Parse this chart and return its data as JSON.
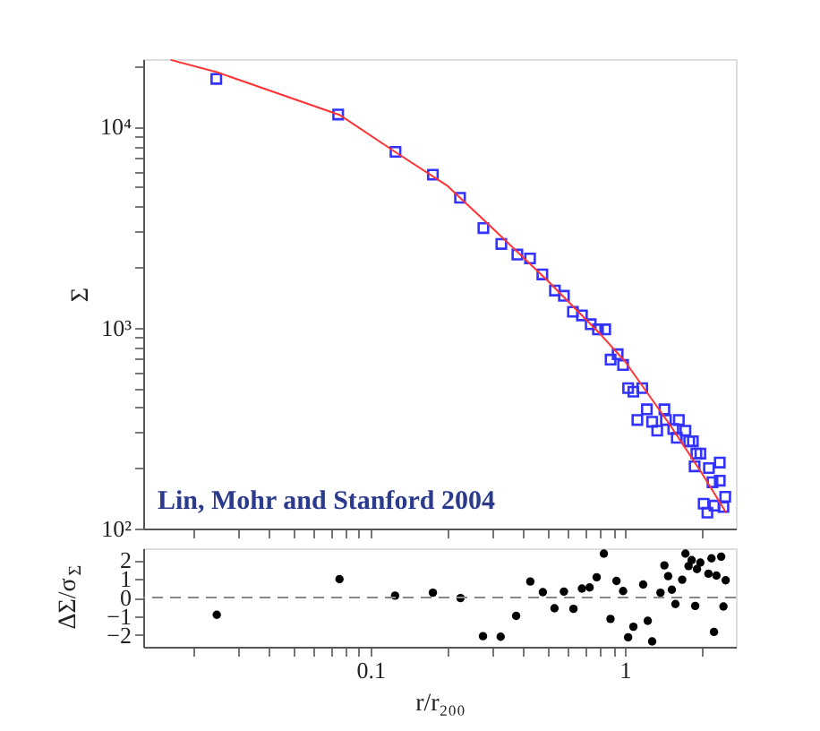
{
  "chart_data": [
    {
      "type": "scatter",
      "ylabel": "Σ",
      "log": "xy",
      "grid": false,
      "legend": false,
      "tick_labels": "y",
      "annotations": [
        "Lin, Mohr and Stanford 2004"
      ],
      "xlim": [
        0.0128,
        2.73
      ],
      "ylim": [
        100,
        21700
      ],
      "xticks": [
        {
          "value": 0.02,
          "label": null
        },
        {
          "value": 0.03,
          "label": null
        },
        {
          "value": 0.04,
          "label": null
        },
        {
          "value": 0.05,
          "label": null
        },
        {
          "value": 0.06,
          "label": null
        },
        {
          "value": 0.07,
          "label": null
        },
        {
          "value": 0.08,
          "label": null
        },
        {
          "value": 0.09,
          "label": null
        },
        {
          "value": 0.1,
          "label": null
        },
        {
          "value": 0.2,
          "label": null
        },
        {
          "value": 0.3,
          "label": null
        },
        {
          "value": 0.4,
          "label": null
        },
        {
          "value": 0.5,
          "label": null
        },
        {
          "value": 0.6,
          "label": null
        },
        {
          "value": 0.7,
          "label": null
        },
        {
          "value": 0.8,
          "label": null
        },
        {
          "value": 0.9,
          "label": null
        },
        {
          "value": 1,
          "label": null
        },
        {
          "value": 2,
          "label": null
        }
      ],
      "yticks": [
        {
          "value": 100,
          "label": "10²"
        },
        {
          "value": 200,
          "label": null
        },
        {
          "value": 300,
          "label": null
        },
        {
          "value": 400,
          "label": null
        },
        {
          "value": 500,
          "label": null
        },
        {
          "value": 600,
          "label": null
        },
        {
          "value": 700,
          "label": null
        },
        {
          "value": 800,
          "label": null
        },
        {
          "value": 900,
          "label": null
        },
        {
          "value": 1000,
          "label": "10³"
        },
        {
          "value": 2000,
          "label": null
        },
        {
          "value": 3000,
          "label": null
        },
        {
          "value": 4000,
          "label": null
        },
        {
          "value": 5000,
          "label": null
        },
        {
          "value": 6000,
          "label": null
        },
        {
          "value": 7000,
          "label": null
        },
        {
          "value": 8000,
          "label": null
        },
        {
          "value": 9000,
          "label": null
        },
        {
          "value": 10000,
          "label": "10⁴"
        },
        {
          "value": 20000,
          "label": null
        }
      ],
      "series": [
        {
          "type": "scatter",
          "marker": "square",
          "color": "#3333ff",
          "x": [
            0.0248,
            0.0747,
            0.1255,
            0.176,
            0.225,
            0.278,
            0.327,
            0.378,
            0.424,
            0.474,
            0.531,
            0.576,
            0.625,
            0.678,
            0.734,
            0.784,
            0.837,
            0.879,
            0.937,
            0.984,
            1.03,
            1.08,
            1.17,
            1.22,
            1.12,
            1.28,
            1.34,
            1.43,
            1.45,
            1.55,
            1.63,
            1.6,
            1.73,
            1.79,
            1.85,
            1.91,
            1.98,
            1.88,
            2.14,
            2.36,
            2.21,
            2.36,
            2.48,
            2.04,
            2.25,
            2.44,
            2.11
          ],
          "values": [
            17300,
            11500,
            7500,
            5770,
            4430,
            3130,
            2610,
            2310,
            2210,
            1840,
            1530,
            1440,
            1200,
            1150,
            1040,
            980,
            980,
            693,
            737,
            652,
            500,
            480,
            500,
            392,
            347,
            340,
            307,
            392,
            347,
            313,
            347,
            283,
            307,
            272,
            272,
            236,
            236,
            204,
            200,
            213,
            170,
            173,
            144,
            133,
            130,
            128,
            120
          ]
        },
        {
          "type": "line",
          "marker": "none",
          "line_style": "solid",
          "color": "#ff3333",
          "x": [
            0.0164,
            0.0249,
            0.0756,
            0.125,
            0.2,
            0.3,
            0.5,
            0.8,
            1.0,
            1.5,
            2.0,
            2.5
          ],
          "values": [
            21500,
            18700,
            11460,
            7500,
            5100,
            3150,
            1700,
            930,
            680,
            330,
            190,
            120
          ]
        }
      ]
    },
    {
      "type": "scatter",
      "xlabel": "r/r₂₀₀",
      "ylabel": "ΔΣ/σ$_{Σ}$",
      "log": "x",
      "grid": false,
      "legend": false,
      "xlim": [
        0.0128,
        2.73
      ],
      "ylim": [
        -2.65,
        2.65
      ],
      "xticks": [
        {
          "value": 0.02,
          "label": null
        },
        {
          "value": 0.03,
          "label": null
        },
        {
          "value": 0.04,
          "label": null
        },
        {
          "value": 0.05,
          "label": null
        },
        {
          "value": 0.06,
          "label": null
        },
        {
          "value": 0.07,
          "label": null
        },
        {
          "value": 0.08,
          "label": null
        },
        {
          "value": 0.09,
          "label": null
        },
        {
          "value": 0.1,
          "label": "0.1"
        },
        {
          "value": 0.2,
          "label": null
        },
        {
          "value": 0.3,
          "label": null
        },
        {
          "value": 0.4,
          "label": null
        },
        {
          "value": 0.5,
          "label": null
        },
        {
          "value": 0.6,
          "label": null
        },
        {
          "value": 0.7,
          "label": null
        },
        {
          "value": 0.8,
          "label": null
        },
        {
          "value": 0.9,
          "label": null
        },
        {
          "value": 1,
          "label": "1"
        },
        {
          "value": 2,
          "label": null
        }
      ],
      "yticks": [
        -2,
        -1,
        0,
        1,
        2
      ],
      "ref_lines": [
        {
          "axis": "y",
          "value": 0,
          "line_style": "dashed",
          "color": "#888888"
        }
      ],
      "series": [
        {
          "type": "scatter",
          "marker": "circle",
          "color": "#000000",
          "x": [
            0.0249,
            0.0756,
            0.125,
            0.176,
            0.226,
            0.277,
            0.325,
            0.374,
            0.425,
            0.476,
            0.529,
            0.576,
            0.628,
            0.678,
            0.727,
            0.775,
            0.827,
            0.878,
            0.927,
            0.984,
            1.03,
            1.08,
            1.18,
            1.23,
            1.28,
            1.38,
            1.43,
            1.48,
            1.53,
            1.58,
            1.68,
            1.73,
            1.78,
            1.83,
            1.89,
            1.92,
            1.98,
            2.13,
            2.19,
            2.24,
            2.29,
            2.39,
            2.44,
            2.49
          ],
          "values": [
            -0.93,
            0.99,
            0.1,
            0.26,
            -0.03,
            -2.08,
            -2.11,
            -0.99,
            0.86,
            0.29,
            -0.58,
            0.32,
            -0.61,
            0.48,
            0.54,
            1.09,
            2.36,
            -1.15,
            0.89,
            0.35,
            -2.14,
            -1.57,
            0.7,
            -1.25,
            -2.36,
            0.26,
            1.73,
            1.15,
            0.42,
            -0.35,
            0.96,
            2.36,
            1.69,
            2.01,
            -0.45,
            1.53,
            1.88,
            1.28,
            2.11,
            -1.85,
            1.18,
            2.2,
            -0.48,
            0.93
          ]
        }
      ]
    }
  ]
}
